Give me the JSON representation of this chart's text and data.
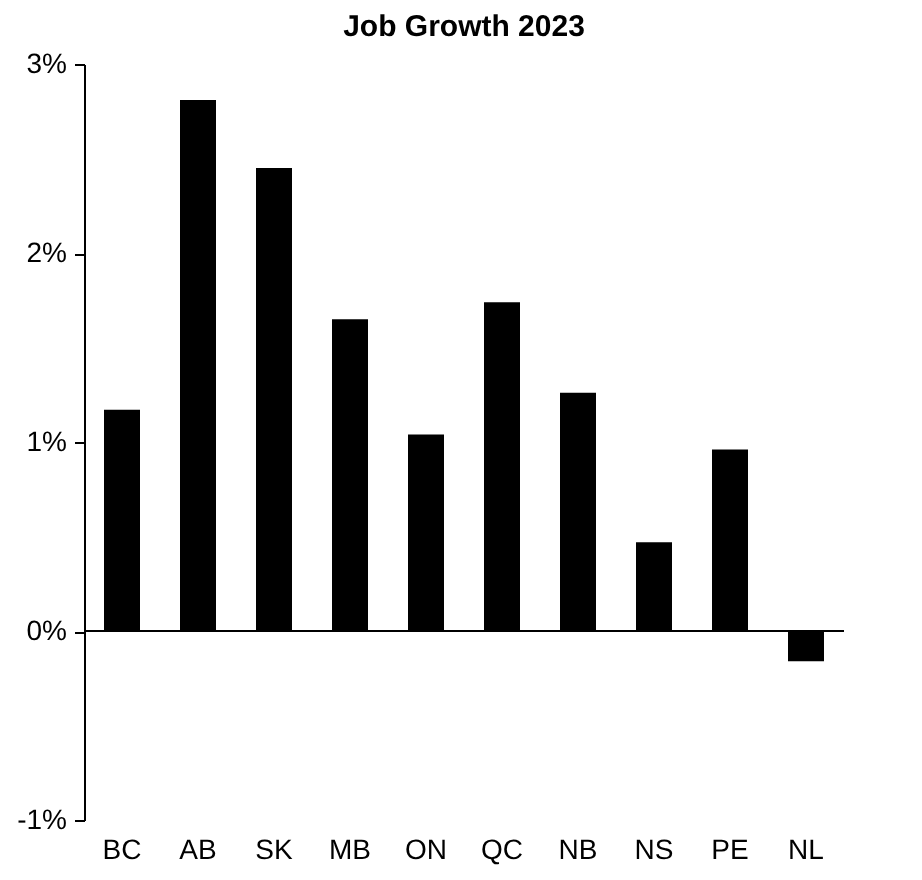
{
  "chart_data": {
    "type": "bar",
    "title": "Job Growth 2023",
    "categories": [
      "BC",
      "AB",
      "SK",
      "MB",
      "ON",
      "QC",
      "NB",
      "NS",
      "PE",
      "NL"
    ],
    "values": [
      1.17,
      2.81,
      2.45,
      1.65,
      1.04,
      1.74,
      1.26,
      0.47,
      0.96,
      -0.16
    ],
    "color": "#000000",
    "ylim": [
      -1,
      3
    ],
    "yticks": [
      {
        "value": -1,
        "label": "-1%"
      },
      {
        "value": 0,
        "label": "0%"
      },
      {
        "value": 1,
        "label": "1%"
      },
      {
        "value": 2,
        "label": "2%"
      },
      {
        "value": 3,
        "label": "3%"
      }
    ],
    "ref_lines": [
      {
        "axis": "y",
        "value": 0,
        "color": "#000000"
      }
    ],
    "grid": false
  }
}
